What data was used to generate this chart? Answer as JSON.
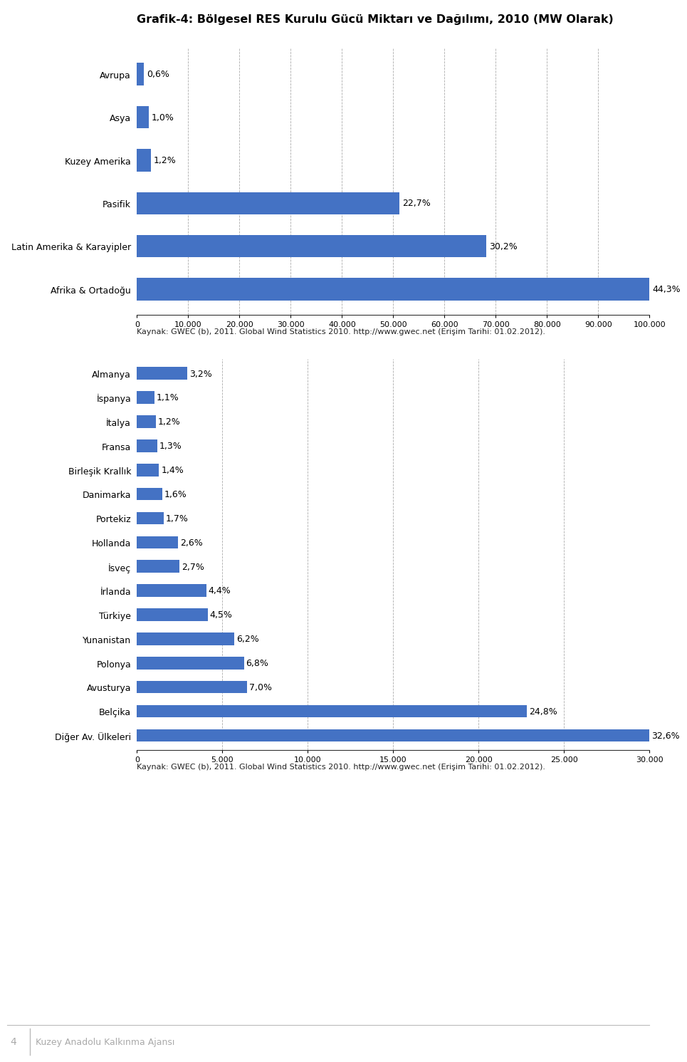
{
  "title": "Grafik-4: Bölgesel RES Kurulu Gücü Miktarı ve Dağılımı, 2010 (MW Olarak)",
  "chart1": {
    "categories": [
      "Avrupa",
      "Asya",
      "Kuzey Amerika",
      "Pasifik",
      "Latin Amerika & Karayipler",
      "Afrika & Ortadoğu"
    ],
    "values": [
      44.3,
      30.2,
      22.7,
      1.2,
      1.0,
      0.6
    ],
    "labels": [
      "44,3%",
      "30,2%",
      "22,7%",
      "1,2%",
      "1,0%",
      "0,6%"
    ],
    "xlim": [
      0,
      100000
    ],
    "xticks": [
      0,
      10000,
      20000,
      30000,
      40000,
      50000,
      60000,
      70000,
      80000,
      90000,
      100000
    ],
    "xtick_labels": [
      "0",
      "10.000",
      "20.000",
      "30.000",
      "40.000",
      "50.000",
      "60.000",
      "70.000",
      "80.000",
      "90.000",
      "100.000"
    ],
    "source": "Kaynak: GWEC (b), 2011. Global Wind Statistics 2010. http://www.gwec.net (Erişim Tarihi: 01.02.2012)."
  },
  "chart2": {
    "categories": [
      "Almanya",
      "İspanya",
      "İtalya",
      "Fransa",
      "Birleşik Krallık",
      "Danimarka",
      "Portekiz",
      "Hollanda",
      "İsveç",
      "İrlanda",
      "Türkiye",
      "Yunanistan",
      "Polonya",
      "Avusturya",
      "Belçika",
      "Diğer Av. Ülkeleri"
    ],
    "values": [
      32.6,
      24.8,
      7.0,
      6.8,
      6.2,
      4.5,
      4.4,
      2.7,
      2.6,
      1.7,
      1.6,
      1.4,
      1.3,
      1.2,
      1.1,
      3.2
    ],
    "labels": [
      "32,6%",
      "24,8%",
      "7,0%",
      "6,8%",
      "6,2%",
      "4,5%",
      "4,4%",
      "2,7%",
      "2,6%",
      "1,7%",
      "1,6%",
      "1,4%",
      "1,3%",
      "1,2%",
      "1,1%",
      "3,2%"
    ],
    "xlim": [
      0,
      30000
    ],
    "xticks": [
      0,
      5000,
      10000,
      15000,
      20000,
      25000,
      30000
    ],
    "xtick_labels": [
      "0",
      "5.000",
      "10.000",
      "15.000",
      "20.000",
      "25.000",
      "30.000"
    ],
    "source": "Kaynak: GWEC (b), 2011. Global Wind Statistics 2010. http://www.gwec.net (Erişim Tarihi: 01.02.2012)."
  },
  "bar_color": "#4472C4",
  "background_color": "#FFFFFF",
  "grid_color": "#888888",
  "footer_number": "4",
  "footer_text": "Kuzey Anadolu Kalkınma Ajansı",
  "title_fontsize": 11.5,
  "label_fontsize": 9,
  "tick_fontsize": 8,
  "source_fontsize": 8
}
